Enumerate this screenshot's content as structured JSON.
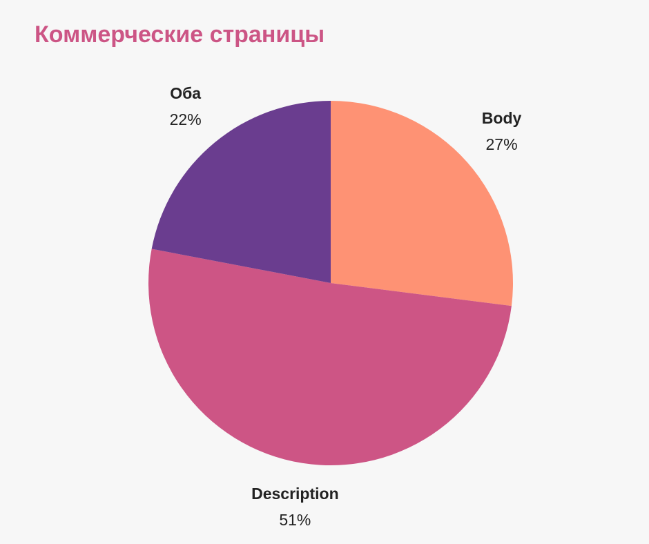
{
  "chart_data": {
    "type": "pie",
    "title": "Коммерческие страницы",
    "title_color": "#cc5585",
    "categories": [
      "Body",
      "Description",
      "Оба"
    ],
    "values": [
      27,
      51,
      22
    ],
    "value_labels": [
      "27%",
      "51%",
      "22%"
    ],
    "colors": [
      "#fe9274",
      "#cd5585",
      "#6a3d8f"
    ]
  }
}
